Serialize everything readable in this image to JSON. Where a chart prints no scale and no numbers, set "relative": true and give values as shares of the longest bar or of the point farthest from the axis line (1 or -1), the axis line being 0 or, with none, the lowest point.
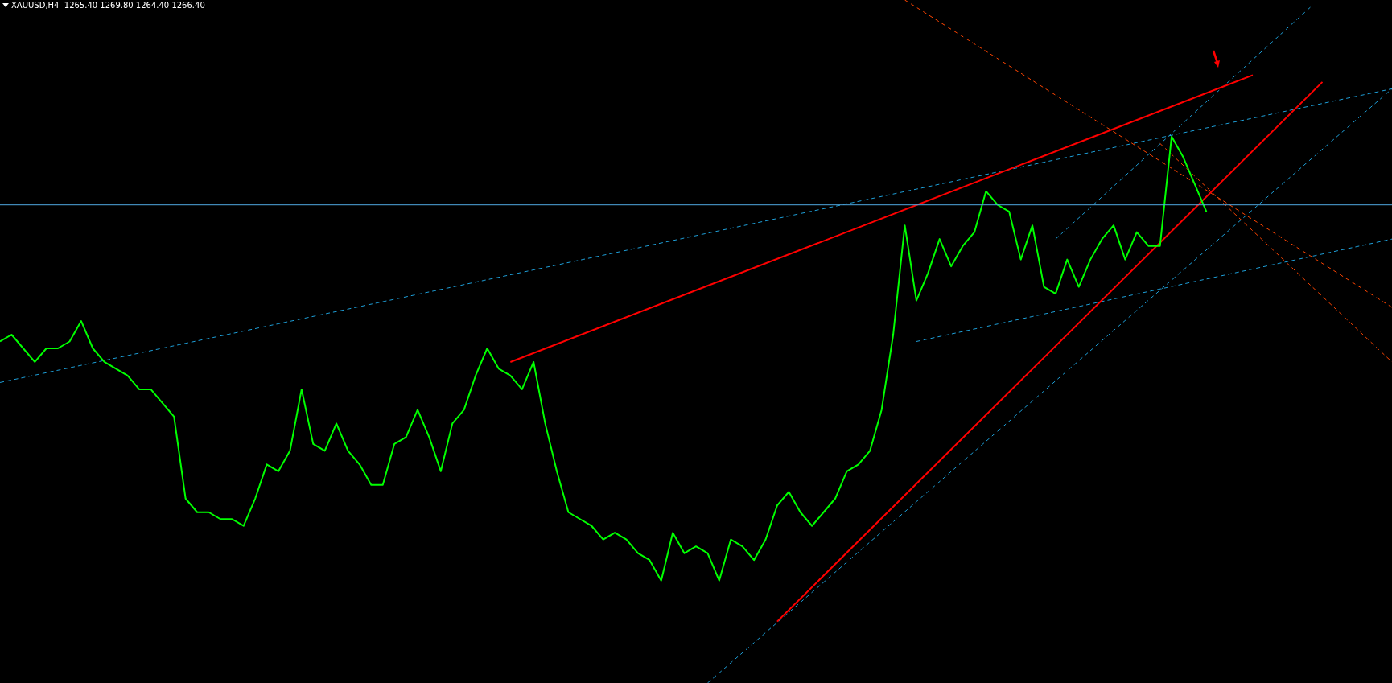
{
  "chart_data": {
    "type": "line",
    "title": "XAUUSD,H4  1265.40 1269.80 1264.40 1266.40",
    "relative": true,
    "legend": false,
    "grid": false,
    "tick_labels": false,
    "marker": "none",
    "categories": [
      null,
      null,
      null,
      null,
      null,
      null,
      null,
      null,
      null,
      null,
      null,
      null,
      null,
      null,
      null,
      null,
      null,
      null,
      null,
      null,
      null,
      null,
      null,
      null,
      null,
      null,
      null,
      null,
      null,
      null,
      null,
      null,
      null,
      null,
      null,
      null,
      null,
      null,
      null,
      null,
      null,
      null,
      null,
      null,
      null,
      null,
      null,
      null,
      null,
      null,
      null,
      null,
      null,
      null,
      null,
      null,
      null,
      null,
      null,
      null,
      null,
      null,
      null,
      null,
      null,
      null,
      null,
      null,
      null,
      null,
      null,
      null,
      null,
      null,
      null,
      null,
      null,
      null,
      null,
      null,
      null,
      null,
      null,
      null,
      null,
      null,
      null,
      null,
      null,
      null,
      null,
      null,
      null,
      null,
      null,
      null,
      null,
      null,
      null,
      null,
      null,
      null,
      null,
      null,
      null,
      null,
      null,
      null,
      null,
      null,
      null,
      null,
      null,
      null,
      null,
      null,
      null,
      null,
      null,
      null,
      null
    ],
    "series": [
      {
        "color": "#00ff00",
        "line_style": "solid",
        "values": [
          0.5,
          0.51,
          0.49,
          0.47,
          0.49,
          0.49,
          0.5,
          0.53,
          0.49,
          0.47,
          0.46,
          0.45,
          0.43,
          0.43,
          0.41,
          0.39,
          0.27,
          0.25,
          0.25,
          0.24,
          0.24,
          0.23,
          0.27,
          0.32,
          0.31,
          0.34,
          0.43,
          0.35,
          0.34,
          0.38,
          0.34,
          0.32,
          0.29,
          0.29,
          0.35,
          0.36,
          0.4,
          0.36,
          0.31,
          0.38,
          0.4,
          0.45,
          0.49,
          0.46,
          0.45,
          0.43,
          0.47,
          0.38,
          0.31,
          0.25,
          0.24,
          0.23,
          0.21,
          0.22,
          0.21,
          0.19,
          0.18,
          0.15,
          0.22,
          0.19,
          0.2,
          0.19,
          0.15,
          0.21,
          0.2,
          0.18,
          0.21,
          0.26,
          0.28,
          0.25,
          0.23,
          0.25,
          0.27,
          0.31,
          0.32,
          0.34,
          0.4,
          0.51,
          0.67,
          0.56,
          0.6,
          0.65,
          0.61,
          0.64,
          0.66,
          0.72,
          0.7,
          0.69,
          0.62,
          0.67,
          0.58,
          0.57,
          0.62,
          0.58,
          0.62,
          0.65,
          0.67,
          0.62,
          0.66,
          0.64,
          0.64,
          0.8,
          0.77,
          0.73,
          0.69,
          null,
          null,
          null,
          null,
          null,
          null,
          null,
          null,
          null,
          null,
          null,
          null,
          null,
          null,
          null,
          null
        ]
      },
      {
        "color": "#ff0000",
        "line_style": "solid",
        "values": [
          null,
          null,
          null,
          null,
          null,
          null,
          null,
          null,
          null,
          null,
          null,
          null,
          null,
          null,
          null,
          null,
          null,
          null,
          null,
          null,
          null,
          null,
          null,
          null,
          null,
          null,
          null,
          null,
          null,
          null,
          null,
          null,
          null,
          null,
          null,
          null,
          null,
          null,
          null,
          null,
          null,
          null,
          null,
          null,
          0.47,
          null,
          null,
          null,
          null,
          null,
          null,
          null,
          null,
          null,
          null,
          null,
          null,
          null,
          null,
          null,
          null,
          null,
          null,
          null,
          null,
          null,
          null,
          null,
          null,
          null,
          null,
          null,
          null,
          null,
          null,
          null,
          null,
          null,
          null,
          null,
          null,
          null,
          null,
          null,
          null,
          null,
          null,
          null,
          null,
          null,
          null,
          null,
          null,
          null,
          null,
          null,
          null,
          null,
          null,
          null,
          null,
          null,
          null,
          null,
          null,
          null,
          null,
          null,
          0.89,
          null,
          null,
          null,
          null,
          null,
          null,
          null,
          null,
          null,
          null,
          null,
          null
        ]
      },
      {
        "color": "#ff0000",
        "line_style": "solid",
        "values": [
          null,
          null,
          null,
          null,
          null,
          null,
          null,
          null,
          null,
          null,
          null,
          null,
          null,
          null,
          null,
          null,
          null,
          null,
          null,
          null,
          null,
          null,
          null,
          null,
          null,
          null,
          null,
          null,
          null,
          null,
          null,
          null,
          null,
          null,
          null,
          null,
          null,
          null,
          null,
          null,
          null,
          null,
          null,
          null,
          null,
          null,
          null,
          null,
          null,
          null,
          null,
          null,
          null,
          null,
          null,
          null,
          null,
          null,
          null,
          null,
          null,
          null,
          null,
          null,
          null,
          null,
          null,
          0.09,
          null,
          null,
          null,
          null,
          null,
          null,
          null,
          null,
          null,
          null,
          null,
          null,
          null,
          null,
          null,
          null,
          null,
          null,
          null,
          null,
          null,
          null,
          null,
          null,
          null,
          null,
          null,
          null,
          null,
          null,
          null,
          null,
          null,
          null,
          null,
          null,
          null,
          null,
          null,
          null,
          null,
          null,
          null,
          null,
          null,
          null,
          0.88,
          null,
          null,
          null,
          null,
          null,
          null
        ]
      },
      {
        "color": "#1e9fd8",
        "line_style": "dashed",
        "values": [
          0.44,
          null,
          null,
          null,
          null,
          null,
          null,
          null,
          null,
          null,
          null,
          null,
          null,
          null,
          null,
          null,
          null,
          null,
          null,
          null,
          null,
          null,
          null,
          null,
          null,
          null,
          null,
          null,
          null,
          null,
          null,
          null,
          null,
          null,
          null,
          null,
          null,
          null,
          null,
          null,
          null,
          null,
          null,
          null,
          null,
          null,
          null,
          null,
          null,
          null,
          null,
          null,
          null,
          null,
          null,
          null,
          null,
          null,
          null,
          null,
          null,
          null,
          null,
          null,
          null,
          null,
          null,
          null,
          null,
          null,
          null,
          null,
          null,
          null,
          null,
          null,
          null,
          null,
          null,
          null,
          null,
          null,
          null,
          null,
          null,
          null,
          null,
          null,
          null,
          null,
          null,
          null,
          null,
          null,
          null,
          null,
          null,
          null,
          null,
          null,
          null,
          null,
          null,
          null,
          null,
          null,
          null,
          null,
          null,
          null,
          null,
          null,
          null,
          null,
          null,
          null,
          null,
          null,
          null,
          null,
          0.87
        ]
      },
      {
        "color": "#1e9fd8",
        "line_style": "dashed",
        "values": [
          null,
          null,
          null,
          null,
          null,
          null,
          null,
          null,
          null,
          null,
          null,
          null,
          null,
          null,
          null,
          null,
          null,
          null,
          null,
          null,
          null,
          null,
          null,
          null,
          null,
          null,
          null,
          null,
          null,
          null,
          null,
          null,
          null,
          null,
          null,
          null,
          null,
          null,
          null,
          null,
          null,
          null,
          null,
          null,
          null,
          null,
          null,
          null,
          null,
          null,
          null,
          null,
          null,
          null,
          null,
          null,
          null,
          null,
          null,
          null,
          null,
          null,
          null,
          null,
          null,
          null,
          null,
          null,
          null,
          null,
          null,
          null,
          null,
          null,
          null,
          null,
          null,
          null,
          null,
          0.5,
          null,
          null,
          null,
          null,
          null,
          null,
          null,
          null,
          null,
          null,
          null,
          null,
          null,
          null,
          null,
          null,
          null,
          null,
          null,
          null,
          null,
          null,
          null,
          null,
          null,
          null,
          null,
          null,
          null,
          null,
          null,
          null,
          null,
          null,
          null,
          null,
          null,
          null,
          null,
          null,
          0.65
        ]
      },
      {
        "color": "#1e9fd8",
        "line_style": "dashed",
        "values": [
          null,
          null,
          null,
          null,
          null,
          null,
          null,
          null,
          null,
          null,
          null,
          null,
          null,
          null,
          null,
          null,
          null,
          null,
          null,
          null,
          null,
          null,
          null,
          null,
          null,
          null,
          null,
          null,
          null,
          null,
          null,
          null,
          null,
          null,
          null,
          null,
          null,
          null,
          null,
          null,
          null,
          null,
          null,
          null,
          null,
          null,
          null,
          null,
          null,
          null,
          null,
          null,
          null,
          null,
          null,
          null,
          null,
          null,
          null,
          null,
          null,
          null,
          null,
          null,
          null,
          null,
          null,
          null,
          null,
          null,
          null,
          null,
          null,
          null,
          null,
          null,
          null,
          null,
          null,
          null,
          null,
          null,
          null,
          null,
          null,
          null,
          null,
          null,
          null,
          null,
          null,
          0.65,
          null,
          null,
          null,
          null,
          null,
          null,
          null,
          null,
          null,
          null,
          null,
          null,
          null,
          null,
          null,
          null,
          null,
          null,
          null,
          null,
          null,
          0.99,
          null,
          null,
          null,
          null,
          null,
          null,
          null
        ]
      },
      {
        "color": "#1e9fd8",
        "line_style": "dashed",
        "values": [
          null,
          null,
          null,
          null,
          null,
          null,
          null,
          null,
          null,
          null,
          null,
          null,
          null,
          null,
          null,
          null,
          null,
          null,
          null,
          null,
          null,
          null,
          null,
          null,
          null,
          null,
          null,
          null,
          null,
          null,
          null,
          null,
          null,
          null,
          null,
          null,
          null,
          null,
          null,
          null,
          null,
          null,
          null,
          null,
          null,
          null,
          null,
          null,
          null,
          null,
          null,
          null,
          null,
          null,
          null,
          null,
          null,
          null,
          null,
          null,
          null,
          0.0,
          null,
          null,
          null,
          null,
          null,
          null,
          null,
          null,
          null,
          null,
          null,
          null,
          null,
          null,
          null,
          null,
          null,
          null,
          null,
          null,
          null,
          null,
          null,
          null,
          null,
          null,
          null,
          null,
          null,
          null,
          null,
          null,
          null,
          null,
          null,
          null,
          null,
          null,
          null,
          null,
          null,
          null,
          null,
          null,
          null,
          null,
          null,
          null,
          null,
          null,
          null,
          null,
          null,
          null,
          null,
          null,
          null,
          null,
          0.87
        ]
      },
      {
        "color": "#ff4500",
        "line_style": "dashed",
        "values": [
          null,
          null,
          null,
          null,
          null,
          null,
          null,
          null,
          null,
          null,
          null,
          null,
          null,
          null,
          null,
          null,
          null,
          null,
          null,
          null,
          null,
          null,
          null,
          null,
          null,
          null,
          null,
          null,
          null,
          null,
          null,
          null,
          null,
          null,
          null,
          null,
          null,
          null,
          null,
          null,
          null,
          null,
          null,
          null,
          null,
          null,
          null,
          null,
          null,
          null,
          null,
          null,
          null,
          null,
          null,
          null,
          null,
          null,
          null,
          null,
          null,
          null,
          null,
          null,
          null,
          null,
          null,
          null,
          null,
          null,
          null,
          null,
          null,
          null,
          null,
          null,
          null,
          null,
          1.0,
          null,
          null,
          null,
          null,
          null,
          null,
          null,
          null,
          null,
          null,
          null,
          null,
          null,
          null,
          null,
          null,
          null,
          null,
          null,
          null,
          null,
          null,
          null,
          null,
          null,
          null,
          null,
          null,
          null,
          null,
          null,
          null,
          null,
          null,
          null,
          null,
          null,
          null,
          null,
          null,
          null,
          0.55
        ]
      },
      {
        "color": "#ff4500",
        "line_style": "dashed",
        "values": [
          null,
          null,
          null,
          null,
          null,
          null,
          null,
          null,
          null,
          null,
          null,
          null,
          null,
          null,
          null,
          null,
          null,
          null,
          null,
          null,
          null,
          null,
          null,
          null,
          null,
          null,
          null,
          null,
          null,
          null,
          null,
          null,
          null,
          null,
          null,
          null,
          null,
          null,
          null,
          null,
          null,
          null,
          null,
          null,
          null,
          null,
          null,
          null,
          null,
          null,
          null,
          null,
          null,
          null,
          null,
          null,
          null,
          null,
          null,
          null,
          null,
          null,
          null,
          null,
          null,
          null,
          null,
          null,
          null,
          null,
          null,
          null,
          null,
          null,
          null,
          null,
          null,
          null,
          null,
          null,
          null,
          null,
          null,
          null,
          null,
          null,
          null,
          null,
          null,
          null,
          null,
          null,
          null,
          null,
          null,
          null,
          null,
          null,
          null,
          null,
          0.79,
          null,
          null,
          null,
          null,
          null,
          null,
          null,
          null,
          null,
          null,
          null,
          null,
          null,
          null,
          null,
          null,
          null,
          null,
          null,
          0.47
        ]
      }
    ],
    "ref_lines": [
      {
        "axis": "y",
        "value": 0.7,
        "color": "#4fa8e0",
        "line_style": "solid"
      }
    ]
  }
}
